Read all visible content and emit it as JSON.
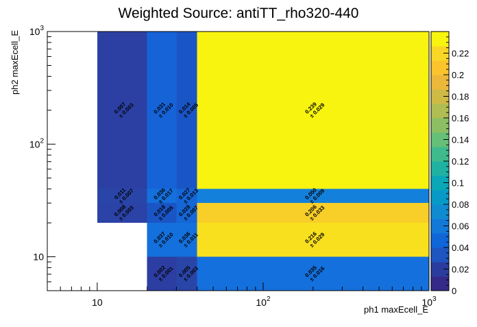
{
  "chart_data": {
    "type": "heatmap",
    "title": "Weighted Source: antiTT_rho320-440",
    "xlabel": "ph1 maxEcell_E",
    "ylabel": "ph2 maxEcell_E",
    "x_scale": "log",
    "y_scale": "log",
    "xlim": [
      5,
      1000
    ],
    "ylim": [
      5,
      1000
    ],
    "x_tick_labels": [
      {
        "value": 10,
        "base": "10",
        "exp": ""
      },
      {
        "value": 100,
        "base": "10",
        "exp": "2"
      },
      {
        "value": 1000,
        "base": "10",
        "exp": "3"
      }
    ],
    "y_tick_labels": [
      {
        "value": 10,
        "base": "10",
        "exp": ""
      },
      {
        "value": 100,
        "base": "10",
        "exp": "2"
      },
      {
        "value": 1000,
        "base": "10",
        "exp": "3"
      }
    ],
    "colorbar": {
      "min": 0,
      "max": 0.24,
      "ticks": [
        "0",
        "0.02",
        "0.04",
        "0.06",
        "0.08",
        "0.1",
        "0.12",
        "0.14",
        "0.16",
        "0.18",
        "0.2",
        "0.22"
      ],
      "palette": [
        "#352a87",
        "#2a3d9e",
        "#1e55c0",
        "#0f66d9",
        "#1279d9",
        "#0f8bd0",
        "#079ac6",
        "#0aa7b6",
        "#1fb2a2",
        "#3fba8d",
        "#65bf77",
        "#8cbf63",
        "#b0bd53",
        "#cfba45",
        "#ecb83a",
        "#fbc32c",
        "#f9d726",
        "#f8f40f"
      ]
    },
    "cells": [
      {
        "x0": 10,
        "x1": 20,
        "y0": 40,
        "y1": 1000,
        "color": "#2c40a4",
        "value": "0.007",
        "error": "± 0.003"
      },
      {
        "x0": 20,
        "x1": 30,
        "y0": 40,
        "y1": 1000,
        "color": "#1663d8",
        "value": "0.031",
        "error": "± 0.010"
      },
      {
        "x0": 30,
        "x1": 40,
        "y0": 40,
        "y1": 1000,
        "color": "#1a55c6",
        "value": "0.014",
        "error": "± 0.005"
      },
      {
        "x0": 40,
        "x1": 1000,
        "y0": 40,
        "y1": 1000,
        "color": "#f8f40f",
        "value": "0.239",
        "error": "± 0.029"
      },
      {
        "x0": 10,
        "x1": 20,
        "y0": 30,
        "y1": 40,
        "color": "#2a45a8",
        "value": "0.011",
        "error": "± 0.007"
      },
      {
        "x0": 20,
        "x1": 30,
        "y0": 30,
        "y1": 40,
        "color": "#1470dc",
        "value": "0.036",
        "error": "± 0.017"
      },
      {
        "x0": 30,
        "x1": 40,
        "y0": 30,
        "y1": 40,
        "color": "#1566d6",
        "value": "0.027",
        "error": "± 0.013"
      },
      {
        "x0": 40,
        "x1": 1000,
        "y0": 30,
        "y1": 40,
        "color": "#1380db",
        "value": "0.050",
        "error": "± 0.009"
      },
      {
        "x0": 10,
        "x1": 20,
        "y0": 20,
        "y1": 30,
        "color": "#2b42a6",
        "value": "0.008",
        "error": "± 0.003"
      },
      {
        "x0": 20,
        "x1": 30,
        "y0": 20,
        "y1": 30,
        "color": "#1a55c6",
        "value": "0.018",
        "error": "± 0.005"
      },
      {
        "x0": 30,
        "x1": 40,
        "y0": 20,
        "y1": 30,
        "color": "#1566d6",
        "value": "0.028",
        "error": "± 0.007"
      },
      {
        "x0": 40,
        "x1": 1000,
        "y0": 20,
        "y1": 30,
        "color": "#f8ce28",
        "value": "0.206",
        "error": "± 0.033"
      },
      {
        "x0": 20,
        "x1": 30,
        "y0": 10,
        "y1": 20,
        "color": "#1470dc",
        "value": "0.037",
        "error": "± 0.010"
      },
      {
        "x0": 30,
        "x1": 40,
        "y0": 10,
        "y1": 20,
        "color": "#1470dc",
        "value": "0.036",
        "error": "± 0.011"
      },
      {
        "x0": 40,
        "x1": 1000,
        "y0": 10,
        "y1": 20,
        "color": "#f8e01f",
        "value": "0.216",
        "error": "± 0.029"
      },
      {
        "x0": 20,
        "x1": 30,
        "y0": 5,
        "y1": 10,
        "color": "#2c3ea2",
        "value": "0.002",
        "error": "± 0.001"
      },
      {
        "x0": 30,
        "x1": 40,
        "y0": 5,
        "y1": 10,
        "color": "#2a45a8",
        "value": "0.005",
        "error": "± 0.003"
      },
      {
        "x0": 40,
        "x1": 1000,
        "y0": 5,
        "y1": 10,
        "color": "#1470dc",
        "value": "0.035",
        "error": "± 0.016"
      }
    ]
  }
}
